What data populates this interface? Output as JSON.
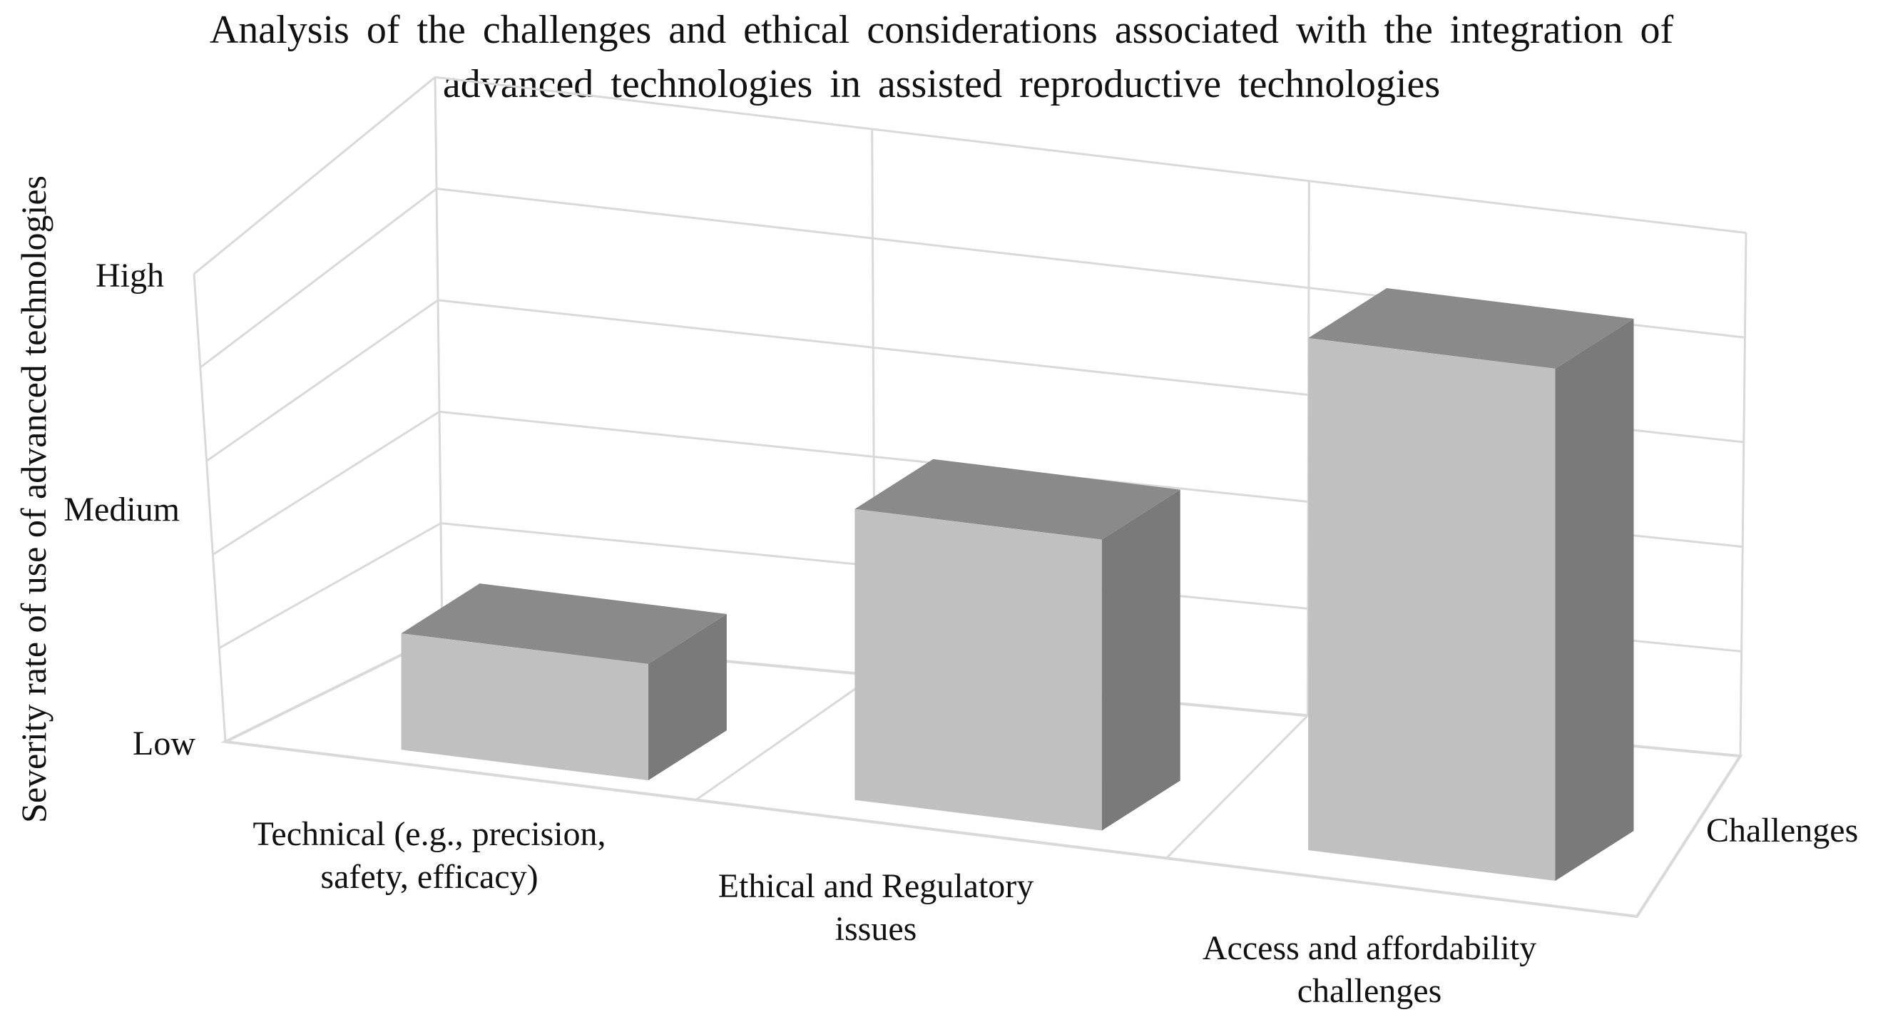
{
  "chart_data": {
    "type": "bar",
    "title": "Analysis of the challenges and ethical considerations associated with the integration of advanced technologies in assisted reproductive technologies",
    "title_lines": [
      "Analysis of the challenges and ethical considerations associated with the integration of",
      "advanced technologies in assisted reproductive technologies"
    ],
    "ylabel": "Severity rate of use of advanced technologies",
    "xlabel": "Challenges",
    "categories": [
      [
        "Technical (e.g., precision,",
        "safety, efficacy)"
      ],
      [
        "Ethical and Regulatory",
        "issues"
      ],
      [
        "Access and affordability",
        "challenges"
      ]
    ],
    "values": [
      0.5,
      1.25,
      2.2
    ],
    "yticks": [
      {
        "value": 0,
        "label": "Low"
      },
      {
        "value": 1,
        "label": "Medium"
      },
      {
        "value": 2,
        "label": "High"
      }
    ],
    "ylim": [
      0,
      2
    ],
    "grid": true,
    "legend": "none",
    "style": "3d-column",
    "colors": {
      "bar_front": "#c0c0c0",
      "bar_top": "#8a8a8a",
      "bar_side": "#7a7a7a",
      "grid": "#d9d9d9",
      "axis_text": "#111111"
    }
  }
}
